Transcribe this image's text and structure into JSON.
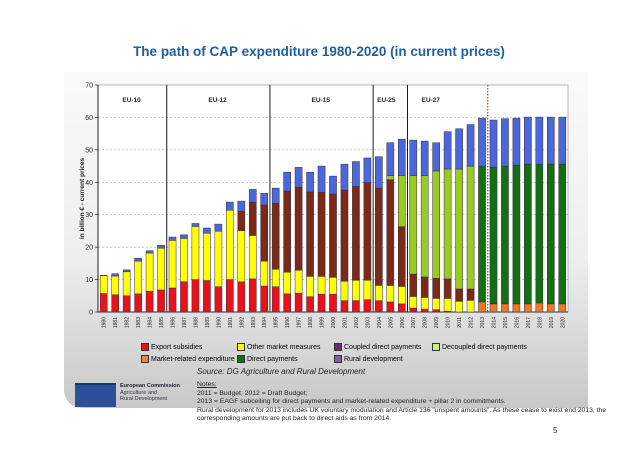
{
  "title": "The path of CAP expenditure 1980-2020 (in current prices)",
  "chart_data": {
    "type": "bar",
    "stacked": true,
    "title": "The path of CAP expenditure 1980-2020 (in current prices)",
    "ylabel": "in billion € - current prices",
    "xlabel": "",
    "ylim": [
      0,
      70
    ],
    "yticks": [
      0,
      10,
      20,
      30,
      40,
      50,
      60,
      70
    ],
    "grid": true,
    "legend_position": "bottom",
    "categories": [
      "1980",
      "1981",
      "1982",
      "1983",
      "1984",
      "1985",
      "1986",
      "1987",
      "1988",
      "1989",
      "1990",
      "1991",
      "1992",
      "1993",
      "1994",
      "1995",
      "1996",
      "1997",
      "1998",
      "1999",
      "2000",
      "2001",
      "2002",
      "2003",
      "2004",
      "2005",
      "2006",
      "2007",
      "2008",
      "2009",
      "2010",
      "2011",
      "2012",
      "2013",
      "2014",
      "2015",
      "2016",
      "2017",
      "2018",
      "2019",
      "2020"
    ],
    "series": [
      {
        "name": "Export subsidies",
        "color": "#e8121c",
        "values": [
          5.7,
          5.3,
          5.0,
          5.6,
          6.4,
          6.8,
          7.4,
          9.3,
          10.0,
          9.7,
          7.8,
          10.0,
          9.3,
          10.2,
          8.0,
          7.8,
          5.6,
          5.8,
          4.7,
          5.5,
          5.5,
          3.5,
          3.5,
          3.8,
          3.5,
          3.1,
          2.5,
          1.2,
          0.9,
          0.7,
          0.2,
          0,
          0,
          0,
          0,
          0,
          0,
          0,
          0,
          0,
          0
        ]
      },
      {
        "name": "Other market measures",
        "color": "#ffff00",
        "values": [
          5.5,
          5.8,
          7.4,
          10.1,
          11.8,
          12.9,
          14.7,
          13.4,
          16.4,
          14.6,
          17.1,
          21.4,
          15.8,
          13.4,
          7.7,
          5.4,
          6.7,
          7.1,
          6.3,
          5.5,
          5.2,
          6.0,
          6.3,
          6.0,
          4.7,
          5.1,
          5.4,
          3.6,
          3.6,
          3.5,
          4.0,
          3.3,
          3.6,
          0,
          0,
          0,
          0,
          0,
          0,
          0,
          0
        ]
      },
      {
        "name": "Coupled direct payments",
        "color": "#7b2a17",
        "values": [
          0,
          0,
          0,
          0,
          0,
          0,
          0,
          0,
          0,
          0,
          0,
          0,
          6.0,
          10.2,
          17.3,
          20.3,
          25.0,
          25.6,
          26.0,
          25.9,
          25.7,
          28.1,
          28.9,
          30.1,
          30.0,
          32.6,
          18.4,
          6.9,
          6.3,
          6.2,
          6.0,
          3.8,
          3.5,
          0,
          0,
          0,
          0,
          0,
          0,
          0,
          0
        ]
      },
      {
        "name": "Decoupled direct payments",
        "color": "#99cc22",
        "values": [
          0,
          0,
          0,
          0,
          0,
          0,
          0,
          0,
          0,
          0,
          0,
          0,
          0,
          0,
          0,
          0,
          0,
          0,
          0,
          0,
          0,
          0,
          0,
          0,
          0,
          1.3,
          15.8,
          30.4,
          31.3,
          33.1,
          33.9,
          37.0,
          37.9,
          0,
          0,
          0,
          0,
          0,
          0,
          0,
          0
        ]
      },
      {
        "name": "Market-related expenditure",
        "color": "#f07820",
        "values": [
          0,
          0,
          0,
          0,
          0,
          0,
          0,
          0,
          0,
          0,
          0,
          0,
          0,
          0,
          0,
          0,
          0,
          0,
          0,
          0,
          0,
          0,
          0,
          0,
          0,
          0,
          0,
          0,
          0,
          0,
          0,
          0,
          0,
          3.1,
          2.5,
          2.5,
          2.5,
          2.5,
          2.8,
          2.5,
          2.5
        ]
      },
      {
        "name": "Direct payments",
        "color": "#127012",
        "values": [
          0,
          0,
          0,
          0,
          0,
          0,
          0,
          0,
          0,
          0,
          0,
          0,
          0,
          0,
          0,
          0,
          0,
          0,
          0,
          0,
          0,
          0,
          0,
          0,
          0,
          0,
          0,
          0,
          0,
          0,
          0,
          0,
          0,
          41.9,
          42.2,
          42.5,
          42.8,
          43.1,
          42.8,
          43.1,
          43.1
        ]
      },
      {
        "name": "Rural development",
        "color": "#4a68dc",
        "values": [
          0.1,
          0.7,
          0.6,
          0.9,
          0.7,
          0.9,
          1.0,
          1.1,
          0.9,
          1.6,
          2.2,
          2.5,
          3.1,
          4.0,
          3.6,
          4.7,
          5.8,
          6.1,
          6.1,
          8.1,
          5.5,
          8.0,
          7.7,
          7.6,
          9.7,
          10.1,
          11.2,
          10.9,
          10.6,
          8.7,
          11.5,
          12.4,
          12.8,
          14.8,
          14.5,
          14.6,
          14.5,
          14.5,
          14.5,
          14.5,
          14.5
        ]
      }
    ],
    "legend_swatch_colors": [
      "#e8121c",
      "#ffff00",
      "#6b2a6a",
      "#ccee88",
      "#e08850",
      "#127012",
      "#8060a8"
    ],
    "annotations": [
      {
        "text": "EU-10",
        "from": "1980",
        "to": "1985"
      },
      {
        "text": "EU-12",
        "from": "1986",
        "to": "1994"
      },
      {
        "text": "EU-15",
        "from": "1995",
        "to": "2003"
      },
      {
        "text": "EU-25",
        "from": "2004",
        "to": "2006"
      },
      {
        "text": "EU-27",
        "from": "2007",
        "to": "2020"
      }
    ],
    "dotted_divider_after": "2013"
  },
  "source": "Source: DG Agriculture and Rural Development",
  "notes": {
    "heading": "Notes:",
    "lines": [
      "2011 = Budget; 2012 = Draft Budget;",
      "2013 = EAGF subceiling for direct payments and market-related expenditure + pillar 2 in commitments.",
      "Rural development for 2013 includes UK voluntary modulation and Article 136 \"unspent amounts\". As these cease to exist end 2013, the corresponding amounts are put back to direct aids as from 2014."
    ]
  },
  "logo": {
    "line1": "European Commission",
    "line2": "Agriculture and",
    "line3": "Rural Development"
  },
  "page_number": "5"
}
